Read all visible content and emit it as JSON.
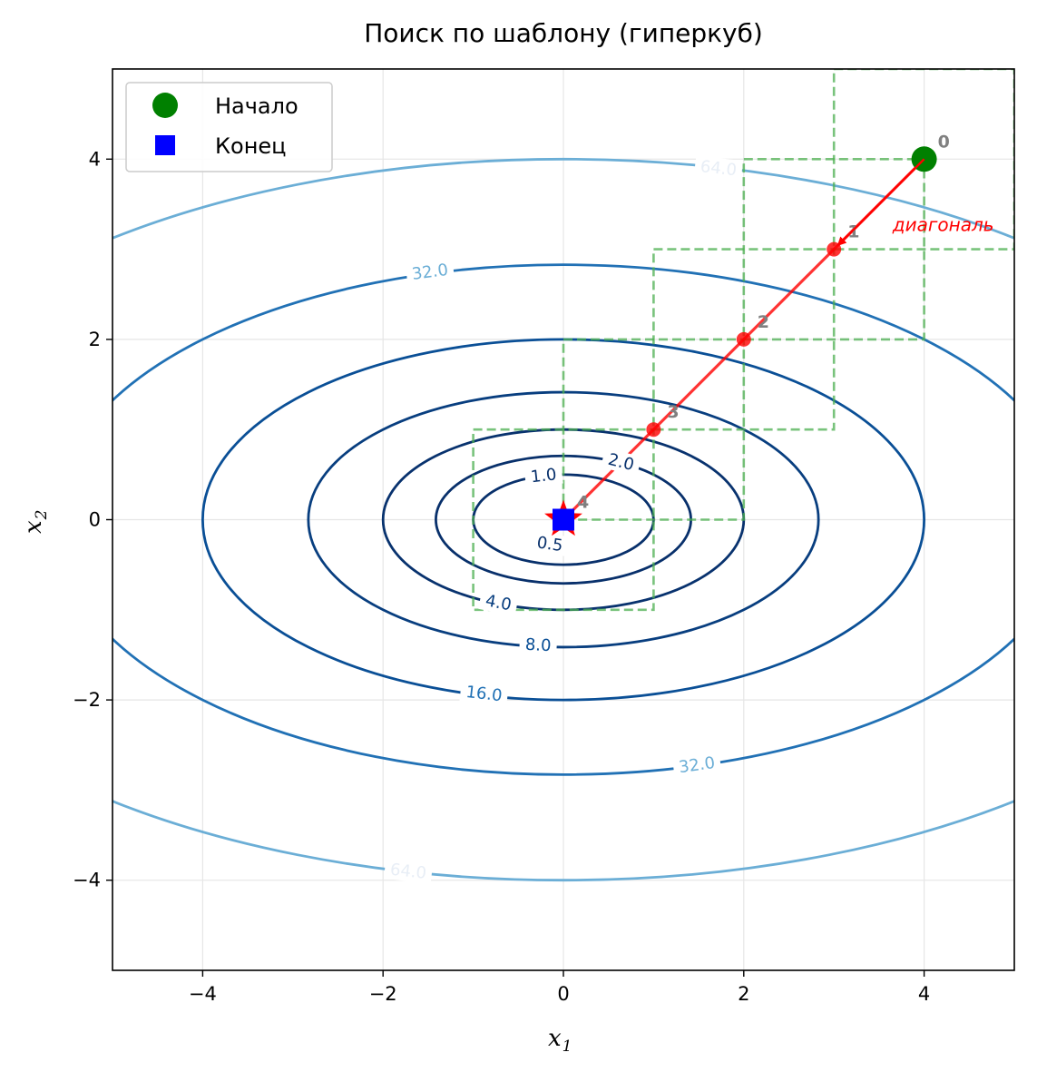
{
  "chart_data": {
    "type": "line",
    "title": "Поиск по шаблону (гиперкуб)",
    "xlabel": "x",
    "xlabel_sub": "1",
    "ylabel": "x",
    "ylabel_sub": "2",
    "xlim": [
      -5,
      5
    ],
    "ylim": [
      -5,
      5
    ],
    "xticks": [
      -4,
      -2,
      0,
      2,
      4
    ],
    "yticks": [
      -4,
      -2,
      0,
      2,
      4
    ],
    "xtick_labels": [
      "−4",
      "−2",
      "0",
      "2",
      "4"
    ],
    "ytick_labels": [
      "−4",
      "−2",
      "0",
      "2",
      "4"
    ],
    "grid": true,
    "legend_position": "top-left",
    "legend": [
      {
        "label": "Начало",
        "marker": "circle",
        "color": "#008000"
      },
      {
        "label": "Конец",
        "marker": "square",
        "color": "#0000ff"
      }
    ],
    "contour_levels": [
      0.5,
      1.0,
      2.0,
      4.0,
      8.0,
      16.0,
      32.0,
      64.0
    ],
    "contour_labels": [
      {
        "text": "0.5",
        "x": -0.15,
        "y": -0.27
      },
      {
        "text": "1.0",
        "x": -0.22,
        "y": 0.49
      },
      {
        "text": "2.0",
        "x": 0.64,
        "y": 0.64
      },
      {
        "text": "4.0",
        "x": -0.72,
        "y": -0.92
      },
      {
        "text": "8.0",
        "x": -0.28,
        "y": -1.39
      },
      {
        "text": "16.0",
        "x": -0.88,
        "y": -1.93
      },
      {
        "text": "32.0",
        "x": -1.48,
        "y": 2.75
      },
      {
        "text": "32.0",
        "x": 1.48,
        "y": -2.72
      },
      {
        "text": "64.0",
        "x": 1.72,
        "y": 3.9
      },
      {
        "text": "64.0",
        "x": -1.72,
        "y": -3.9
      }
    ],
    "series": [
      {
        "name": "path",
        "color": "#ff0000",
        "points": [
          [
            4,
            4
          ],
          [
            3,
            3
          ],
          [
            2,
            2
          ],
          [
            1,
            1
          ],
          [
            0,
            0
          ]
        ],
        "point_labels": [
          "0",
          "1",
          "2",
          "3",
          "4"
        ]
      }
    ],
    "hypercubes": [
      {
        "x0": 3,
        "x1": 5,
        "y0": 3,
        "y1": 5
      },
      {
        "x0": 2,
        "x1": 4,
        "y0": 2,
        "y1": 4
      },
      {
        "x0": 1,
        "x1": 3,
        "y0": 1,
        "y1": 3
      },
      {
        "x0": 0,
        "x1": 2,
        "y0": 0,
        "y1": 2
      },
      {
        "x0": -1,
        "x1": 1,
        "y0": -1,
        "y1": 1
      }
    ],
    "start": {
      "x": 4,
      "y": 4
    },
    "end": {
      "x": 0,
      "y": 0
    },
    "annotation": {
      "text": "диагональ",
      "x": 3.65,
      "y": 3.2,
      "arrow_to": [
        3.05,
        3.05
      ]
    }
  }
}
